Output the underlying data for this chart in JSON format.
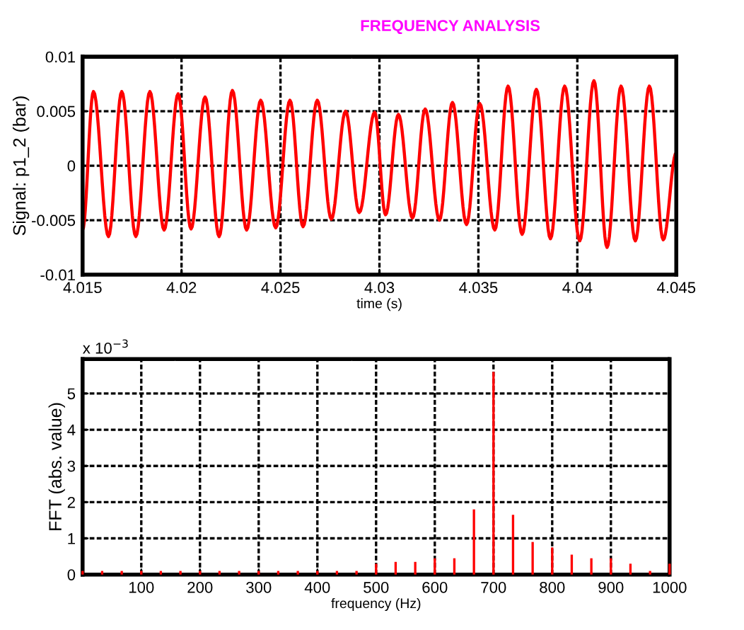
{
  "chart_data": [
    {
      "type": "line",
      "title": "FREQUENCY ANALYSIS",
      "xlabel": "time (s)",
      "ylabel": "Signal: p1_2 (bar)",
      "x": [
        4.015,
        4.01555,
        4.01631,
        4.01698,
        4.01769,
        4.0184,
        4.01912,
        4.01983,
        4.02048,
        4.02119,
        4.0219,
        4.02257,
        4.02329,
        4.024,
        4.02476,
        4.02548,
        4.02614,
        4.02686,
        4.02757,
        4.02829,
        4.02898,
        4.02976,
        4.03031,
        4.03096,
        4.03167,
        4.03231,
        4.03303,
        4.03369,
        4.0344,
        4.03507,
        4.03583,
        4.0365,
        4.03721,
        4.03793,
        4.03864,
        4.03936,
        4.04012,
        4.04084,
        4.0415,
        4.04221,
        4.04293,
        4.04364,
        4.04434,
        4.045
      ],
      "series": [
        {
          "color": "#ff0000",
          "values": [
            -0.0059,
            0.0068,
            -0.0065,
            0.0068,
            -0.0065,
            0.0068,
            -0.0059,
            0.0066,
            -0.0058,
            0.0063,
            -0.0065,
            0.0069,
            -0.0059,
            0.006,
            -0.0057,
            0.006,
            -0.0056,
            0.006,
            -0.0049,
            0.005,
            -0.0043,
            0.0049,
            -0.0045,
            0.0047,
            -0.0048,
            0.0052,
            -0.005,
            0.0058,
            -0.0054,
            0.0057,
            -0.0059,
            0.0073,
            -0.0063,
            0.007,
            -0.0067,
            0.0073,
            -0.0069,
            0.0078,
            -0.0075,
            0.0073,
            -0.0069,
            0.0073,
            -0.0068,
            0.0012
          ]
        }
      ],
      "xlim": [
        4.015,
        4.045
      ],
      "xticks": [
        4.015,
        4.02,
        4.025,
        4.03,
        4.035,
        4.04,
        4.045
      ],
      "ylim": [
        -0.01,
        0.01
      ],
      "yticks": [
        -0.01,
        -0.005,
        0,
        0.005,
        0.01
      ],
      "grid": true,
      "line_style": "solid"
    },
    {
      "type": "bar",
      "xlabel": "frequency (Hz)",
      "ylabel": "FFT (abs. value)",
      "annotations": [
        "x 10$^{−3}$"
      ],
      "x": [
        0,
        33.3,
        66.7,
        100,
        133.3,
        166.7,
        200,
        233.3,
        266.7,
        300,
        333.3,
        366.7,
        400,
        433.3,
        466.7,
        500,
        533.3,
        566.7,
        600,
        633.3,
        666.7,
        700,
        733.3,
        766.7,
        800,
        833.3,
        866.7,
        900,
        933.3,
        966.7,
        1000
      ],
      "series": [
        {
          "color": "#ff0000",
          "values": [
            0.1,
            0.1,
            0.1,
            0.1,
            0.1,
            0.1,
            0.1,
            0.1,
            0.1,
            0.1,
            0.1,
            0.1,
            0.1,
            0.1,
            0.1,
            0.3,
            0.35,
            0.35,
            0.45,
            0.45,
            1.8,
            5.6,
            1.65,
            0.9,
            0.75,
            0.55,
            0.45,
            0.45,
            0.3,
            0.1,
            0.3
          ]
        }
      ],
      "xlim": [
        0,
        1000
      ],
      "xticks": [
        100,
        200,
        300,
        400,
        500,
        600,
        700,
        800,
        900,
        1000
      ],
      "ylim": [
        0,
        5.95
      ],
      "yticks": [
        0,
        1,
        2,
        3,
        4,
        5
      ],
      "grid": true
    }
  ]
}
